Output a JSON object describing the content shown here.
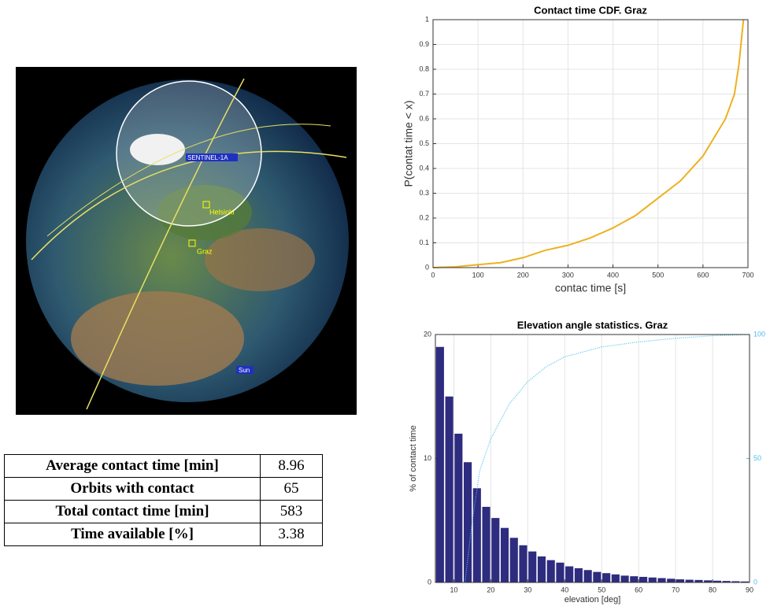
{
  "globe": {
    "labels": [
      "SENTINEL-1A",
      "Helsinki",
      "Graz",
      "Sun"
    ]
  },
  "table": {
    "rows": [
      [
        "Average contact time [min]",
        "8.96"
      ],
      [
        "Orbits with contact",
        "65"
      ],
      [
        "Total contact time [min]",
        "583"
      ],
      [
        "Time available [%]",
        "3.38"
      ]
    ]
  },
  "chart_data": [
    {
      "type": "line",
      "title": "Contact time CDF. Graz",
      "xlabel": "contac time [s]",
      "ylabel": "P(contat time < x)",
      "x": [
        0,
        50,
        100,
        150,
        200,
        250,
        300,
        350,
        400,
        450,
        500,
        550,
        600,
        650,
        670,
        680,
        690
      ],
      "values": [
        0,
        0.003,
        0.012,
        0.02,
        0.04,
        0.07,
        0.09,
        0.12,
        0.16,
        0.21,
        0.28,
        0.35,
        0.45,
        0.6,
        0.7,
        0.82,
        1.0
      ],
      "color": "#edb120",
      "xlim": [
        0,
        700
      ],
      "xticks": [
        0,
        100,
        200,
        300,
        400,
        500,
        600,
        700
      ],
      "ylim": [
        0,
        1
      ],
      "yticks": [
        0,
        0.1,
        0.2,
        0.3,
        0.4,
        0.5,
        0.6,
        0.7,
        0.8,
        0.9,
        1
      ],
      "grid": true
    },
    {
      "type": "histogram",
      "title": "Elevation angle statistics. Graz",
      "xlabel": "elevation [deg]",
      "ylabel": "% of contact time",
      "bins": [
        5,
        7.5,
        10,
        12.5,
        15,
        17.5,
        20,
        22.5,
        25,
        27.5,
        30,
        32.5,
        35,
        37.5,
        40,
        42.5,
        45,
        47.5,
        50,
        52.5,
        55,
        57.5,
        60,
        62.5,
        65,
        67.5,
        70,
        72.5,
        75,
        77.5,
        80,
        82.5,
        85,
        87.5,
        90
      ],
      "values": [
        19,
        15,
        12,
        9.7,
        7.6,
        6.1,
        5.2,
        4.4,
        3.6,
        3.0,
        2.5,
        2.1,
        1.8,
        1.6,
        1.3,
        1.15,
        1.0,
        0.85,
        0.75,
        0.65,
        0.55,
        0.5,
        0.45,
        0.4,
        0.35,
        0.3,
        0.25,
        0.22,
        0.2,
        0.17,
        0.14,
        0.12,
        0.1,
        0.08
      ],
      "color": "#2e2c7f",
      "line": {
        "x": [
          13,
          15,
          17,
          20,
          25,
          30,
          35,
          40,
          50,
          60,
          70,
          80,
          90
        ],
        "values": [
          0,
          25,
          45,
          58,
          72,
          81,
          87,
          91,
          95,
          97,
          98.5,
          99.5,
          100
        ],
        "color": "#4dbeee",
        "axis": "y2"
      },
      "xlim": [
        5,
        90
      ],
      "xticks": [
        10,
        20,
        30,
        40,
        50,
        60,
        70,
        80,
        90
      ],
      "ylim": [
        0,
        20
      ],
      "yticks": [
        0,
        10,
        20
      ],
      "y2lim": [
        0,
        100
      ],
      "y2ticks": [
        0,
        50,
        100
      ],
      "grid": true
    }
  ]
}
